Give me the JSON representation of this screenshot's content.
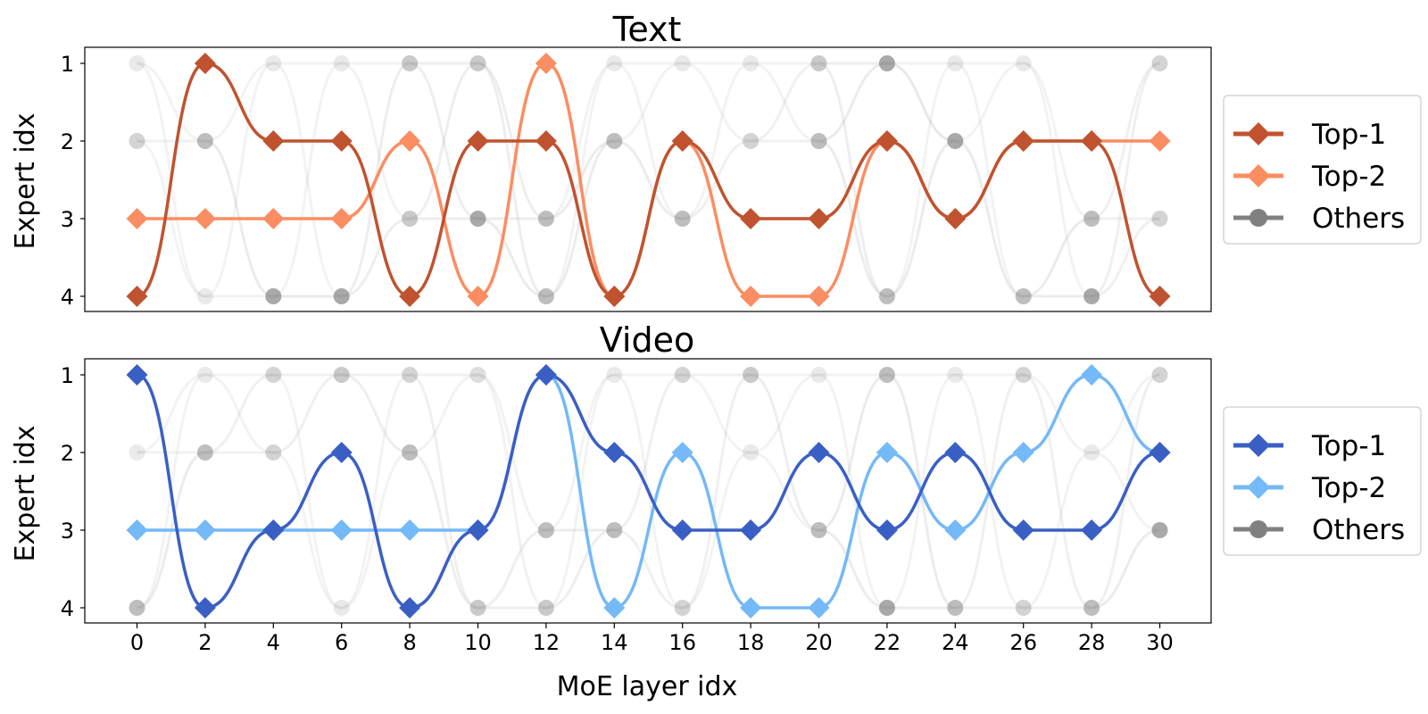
{
  "chart_data": [
    {
      "type": "line",
      "title": "Text",
      "ylabel": "Expert idx",
      "xlabel": "",
      "x": [
        0,
        2,
        4,
        6,
        8,
        10,
        12,
        14,
        16,
        18,
        20,
        22,
        24,
        26,
        28,
        30
      ],
      "xticks": [
        "0",
        "2",
        "4",
        "6",
        "8",
        "10",
        "12",
        "14",
        "16",
        "18",
        "20",
        "22",
        "24",
        "26",
        "28",
        "30"
      ],
      "show_xticks": false,
      "yticks": [
        "1",
        "2",
        "3",
        "4"
      ],
      "ylim": [
        4,
        1
      ],
      "legend_position": "right",
      "grid": false,
      "series": [
        {
          "name": "Top-1",
          "color": "#c0532f",
          "marker": "diamond",
          "values": [
            4,
            1,
            2,
            2,
            4,
            2,
            2,
            4,
            2,
            3,
            3,
            2,
            3,
            2,
            2,
            4
          ]
        },
        {
          "name": "Top-2",
          "color": "#fb8d62",
          "marker": "diamond",
          "values": [
            3,
            3,
            3,
            3,
            2,
            4,
            1,
            4,
            2,
            4,
            4,
            2,
            3,
            2,
            2,
            2
          ]
        },
        {
          "name": "Others",
          "color": "#808080",
          "marker": "circle",
          "values": [
            [
              1,
              2
            ],
            [
              2,
              4
            ],
            [
              1,
              4
            ],
            [
              1,
              4
            ],
            [
              1,
              3
            ],
            [
              1,
              3
            ],
            [
              3,
              4
            ],
            [
              1,
              2
            ],
            [
              1,
              3
            ],
            [
              1,
              2
            ],
            [
              1,
              2
            ],
            [
              1,
              4
            ],
            [
              1,
              2
            ],
            [
              1,
              4
            ],
            [
              3,
              4
            ],
            [
              1,
              3
            ]
          ],
          "weights": [
            [
              0.2,
              0.4
            ],
            [
              0.6,
              0.2
            ],
            [
              0.2,
              0.8
            ],
            [
              0.2,
              0.8
            ],
            [
              0.5,
              0.5
            ],
            [
              0.5,
              0.8
            ],
            [
              0.6,
              0.6
            ],
            [
              0.2,
              0.6
            ],
            [
              0.2,
              0.6
            ],
            [
              0.2,
              0.4
            ],
            [
              0.5,
              0.6
            ],
            [
              0.8,
              0.6
            ],
            [
              0.2,
              0.8
            ],
            [
              0.2,
              0.6
            ],
            [
              0.6,
              0.8
            ],
            [
              0.4,
              0.4
            ]
          ]
        }
      ]
    },
    {
      "type": "line",
      "title": "Video",
      "ylabel": "Expert idx",
      "xlabel": "MoE layer idx",
      "x": [
        0,
        2,
        4,
        6,
        8,
        10,
        12,
        14,
        16,
        18,
        20,
        22,
        24,
        26,
        28,
        30
      ],
      "xticks": [
        "0",
        "2",
        "4",
        "6",
        "8",
        "10",
        "12",
        "14",
        "16",
        "18",
        "20",
        "22",
        "24",
        "26",
        "28",
        "30"
      ],
      "show_xticks": true,
      "yticks": [
        "1",
        "2",
        "3",
        "4"
      ],
      "ylim": [
        4,
        1
      ],
      "legend_position": "right",
      "grid": false,
      "series": [
        {
          "name": "Top-1",
          "color": "#3a5fc4",
          "marker": "diamond",
          "values": [
            1,
            4,
            3,
            2,
            4,
            3,
            1,
            2,
            3,
            3,
            2,
            3,
            2,
            3,
            3,
            2
          ]
        },
        {
          "name": "Top-2",
          "color": "#74b9f8",
          "marker": "diamond",
          "values": [
            3,
            3,
            3,
            3,
            3,
            3,
            1,
            4,
            2,
            4,
            4,
            2,
            3,
            2,
            1,
            2
          ]
        },
        {
          "name": "Others",
          "color": "#808080",
          "marker": "circle",
          "values": [
            [
              2,
              4
            ],
            [
              1,
              2
            ],
            [
              1,
              2
            ],
            [
              1,
              4
            ],
            [
              1,
              2
            ],
            [
              1,
              4
            ],
            [
              3,
              4
            ],
            [
              1,
              3
            ],
            [
              1,
              4
            ],
            [
              1,
              2
            ],
            [
              1,
              3
            ],
            [
              1,
              4
            ],
            [
              1,
              4
            ],
            [
              1,
              4
            ],
            [
              2,
              4
            ],
            [
              1,
              3
            ]
          ],
          "weights": [
            [
              0.2,
              0.6
            ],
            [
              0.2,
              0.6
            ],
            [
              0.4,
              0.4
            ],
            [
              0.5,
              0.2
            ],
            [
              0.4,
              0.6
            ],
            [
              0.3,
              0.5
            ],
            [
              0.6,
              0.5
            ],
            [
              0.2,
              0.6
            ],
            [
              0.4,
              0.4
            ],
            [
              0.5,
              0.2
            ],
            [
              0.2,
              0.6
            ],
            [
              0.6,
              0.8
            ],
            [
              0.2,
              0.6
            ],
            [
              0.4,
              0.4
            ],
            [
              0.2,
              0.6
            ],
            [
              0.4,
              0.8
            ]
          ]
        }
      ]
    }
  ]
}
